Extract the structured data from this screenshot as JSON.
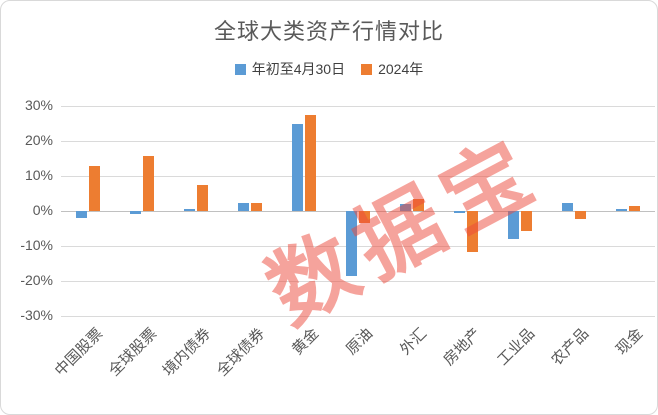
{
  "title": "全球大类资产行情对比",
  "legend": [
    {
      "label": "年初至4月30日",
      "color": "#5B9BD5"
    },
    {
      "label": "2024年",
      "color": "#ED7D31"
    }
  ],
  "watermark": {
    "text": "数据宝",
    "color": "#ED4A3B"
  },
  "colors": {
    "gridline": "#DADADA",
    "zero_line": "#C0C0C0",
    "axis_text": "#595959",
    "title_text": "#595959",
    "series_blue": "#5B9BD5",
    "series_orange": "#ED7D31"
  },
  "chart_data": {
    "type": "bar",
    "title": "全球大类资产行情对比",
    "xlabel": "",
    "ylabel": "",
    "categories": [
      "中国股票",
      "全球股票",
      "境内债券",
      "全球债券",
      "黄金",
      "原油",
      "外汇",
      "房地产",
      "工业品",
      "农产品",
      "现金"
    ],
    "series": [
      {
        "name": "年初至4月30日",
        "color": "#5B9BD5",
        "values": [
          -2.1,
          -0.9,
          0.5,
          2.4,
          24.9,
          -18.7,
          2.0,
          -0.7,
          -8.1,
          2.4,
          0.5
        ]
      },
      {
        "name": "2024年",
        "color": "#ED7D31",
        "values": [
          12.8,
          15.8,
          7.4,
          2.3,
          27.5,
          -3.4,
          3.3,
          -11.8,
          -5.8,
          -2.3,
          1.4
        ]
      }
    ],
    "ylim": [
      -30,
      30
    ],
    "y_ticks": [
      30,
      20,
      10,
      0,
      -10,
      -20,
      -30
    ],
    "y_tick_labels": [
      "30%",
      "20%",
      "10%",
      "0%",
      "-10%",
      "-20%",
      "-30%"
    ],
    "grid": true,
    "legend_position": "top",
    "unit": "percent"
  }
}
